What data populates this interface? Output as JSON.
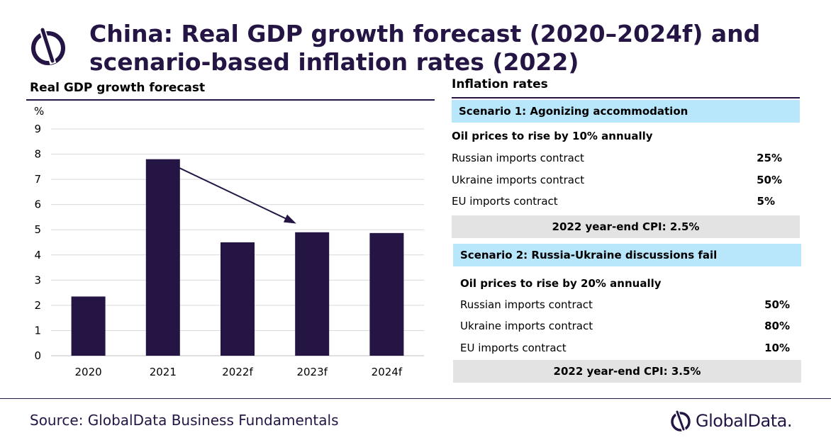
{
  "title": "China: Real GDP growth forecast (2020–2024f) and scenario-based inflation rates (2022)",
  "left_panel": {
    "title": "Real GDP growth  forecast"
  },
  "chart_data": {
    "type": "bar",
    "title": "Real GDP growth  forecast",
    "unit_label": "%",
    "categories": [
      "2020",
      "2021",
      "2022f",
      "2023f",
      "2024f"
    ],
    "values": [
      2.35,
      7.8,
      4.5,
      4.9,
      4.87
    ],
    "ylim": [
      0,
      9
    ],
    "yticks": [
      "0",
      "1",
      "2",
      "3",
      "4",
      "5",
      "6",
      "7",
      "8",
      "9"
    ],
    "grid": true,
    "bar_color": "#241545",
    "annotation": "downward arrow from 2021 to 2023f"
  },
  "right_panel": {
    "title": "Inflation  rates",
    "scenarios": [
      {
        "header": "Scenario 1: Agonizing accommodation",
        "oil": "Oil prices to rise by 10% annually",
        "rows": [
          {
            "label": "Russian imports contract",
            "value": "25%"
          },
          {
            "label": "Ukraine imports contract",
            "value": "50%"
          },
          {
            "label": "EU imports contract",
            "value": "5%"
          }
        ],
        "cpi": "2022 year-end CPI: 2.5%"
      },
      {
        "header": "Scenario 2: Russia-Ukraine discussions fail",
        "oil": "Oil prices to rise by 20% annually",
        "rows": [
          {
            "label": "Russian imports contract",
            "value": "50%"
          },
          {
            "label": "Ukraine imports contract",
            "value": "80%"
          },
          {
            "label": "EU imports contract",
            "value": "10%"
          }
        ],
        "cpi": "2022 year-end CPI: 3.5%"
      }
    ]
  },
  "footer": {
    "source": "Source: GlobalData Business Fundamentals",
    "brand": "GlobalData."
  },
  "colors": {
    "accent": "#241545",
    "scenario_header_bg": "#b8e6fb",
    "cpi_bg": "#e3e3e3"
  }
}
